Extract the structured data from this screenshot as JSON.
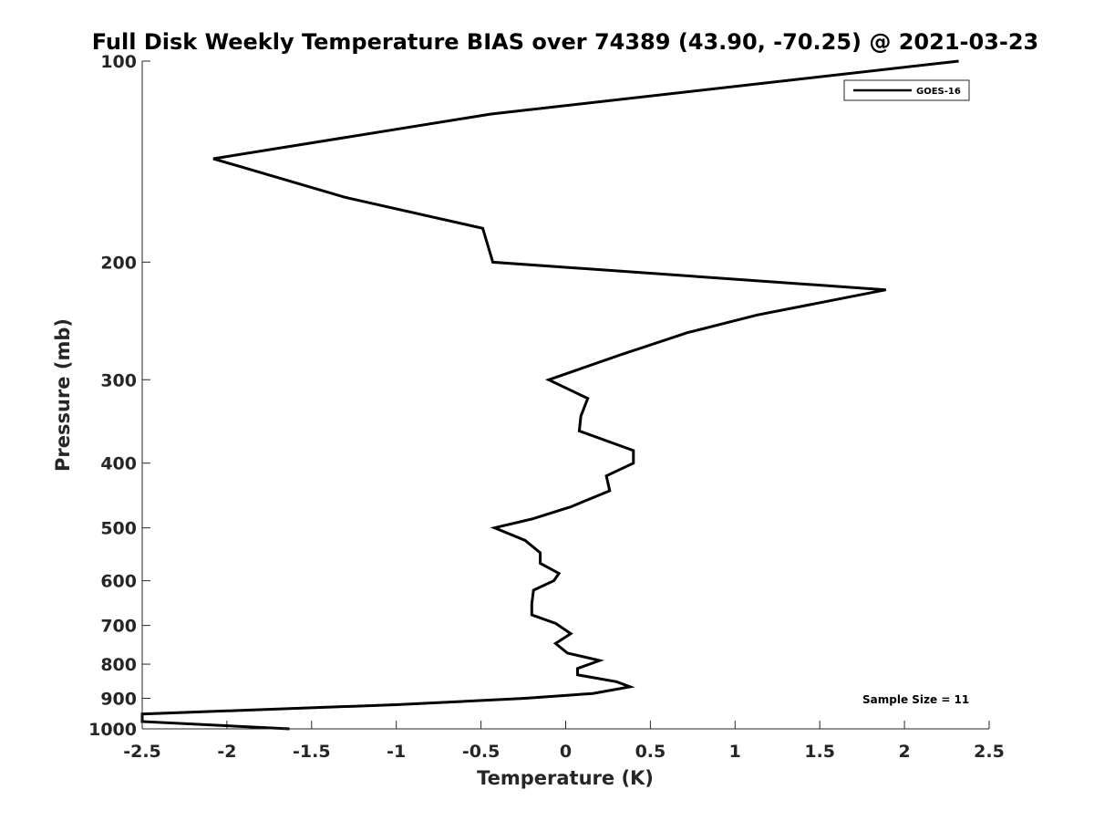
{
  "chart_data": {
    "type": "line",
    "title": "Full Disk Weekly Temperature BIAS over 74389 (43.90, -70.25) @ 2021-03-23",
    "xlabel": "Temperature (K)",
    "ylabel": "Pressure (mb)",
    "xlim": [
      -2.5,
      2.5
    ],
    "ylim": [
      100,
      1000
    ],
    "y_scale": "log",
    "y_reversed": true,
    "xticks": [
      "-2.5",
      "-2",
      "-1.5",
      "-1",
      "-0.5",
      "0",
      "0.5",
      "1",
      "1.5",
      "2",
      "2.5"
    ],
    "yticks": [
      "100",
      "200",
      "300",
      "400",
      "500",
      "600",
      "700",
      "800",
      "900",
      "1000"
    ],
    "grid": false,
    "legend_position": "top-right",
    "annotation": "Sample Size = 11",
    "series": [
      {
        "name": "GOES-16",
        "color": "#000000",
        "points": [
          {
            "x": 2.32,
            "y": 100
          },
          {
            "x": -0.44,
            "y": 120
          },
          {
            "x": -2.08,
            "y": 140
          },
          {
            "x": -1.3,
            "y": 160
          },
          {
            "x": -0.49,
            "y": 178
          },
          {
            "x": -0.43,
            "y": 200
          },
          {
            "x": 1.89,
            "y": 220
          },
          {
            "x": 1.13,
            "y": 240
          },
          {
            "x": 0.72,
            "y": 255
          },
          {
            "x": 0.33,
            "y": 275
          },
          {
            "x": -0.1,
            "y": 300
          },
          {
            "x": 0.13,
            "y": 320
          },
          {
            "x": 0.09,
            "y": 340
          },
          {
            "x": 0.08,
            "y": 358
          },
          {
            "x": 0.4,
            "y": 383
          },
          {
            "x": 0.4,
            "y": 400
          },
          {
            "x": 0.24,
            "y": 418
          },
          {
            "x": 0.26,
            "y": 440
          },
          {
            "x": 0.03,
            "y": 465
          },
          {
            "x": -0.2,
            "y": 485
          },
          {
            "x": -0.42,
            "y": 500
          },
          {
            "x": -0.24,
            "y": 522
          },
          {
            "x": -0.15,
            "y": 545
          },
          {
            "x": -0.15,
            "y": 565
          },
          {
            "x": -0.04,
            "y": 585
          },
          {
            "x": -0.07,
            "y": 600
          },
          {
            "x": -0.19,
            "y": 620
          },
          {
            "x": -0.2,
            "y": 650
          },
          {
            "x": -0.2,
            "y": 675
          },
          {
            "x": -0.06,
            "y": 695
          },
          {
            "x": 0.03,
            "y": 720
          },
          {
            "x": -0.06,
            "y": 745
          },
          {
            "x": 0.01,
            "y": 770
          },
          {
            "x": 0.2,
            "y": 790
          },
          {
            "x": 0.07,
            "y": 812
          },
          {
            "x": 0.07,
            "y": 830
          },
          {
            "x": 0.3,
            "y": 850
          },
          {
            "x": 0.38,
            "y": 865
          },
          {
            "x": 0.16,
            "y": 885
          },
          {
            "x": -0.24,
            "y": 900
          },
          {
            "x": -1.0,
            "y": 920
          },
          {
            "x": -2.0,
            "y": 940
          },
          {
            "x": -2.5,
            "y": 950
          },
          {
            "x": -2.5,
            "y": 975
          },
          {
            "x": -1.63,
            "y": 1000
          }
        ]
      }
    ]
  }
}
